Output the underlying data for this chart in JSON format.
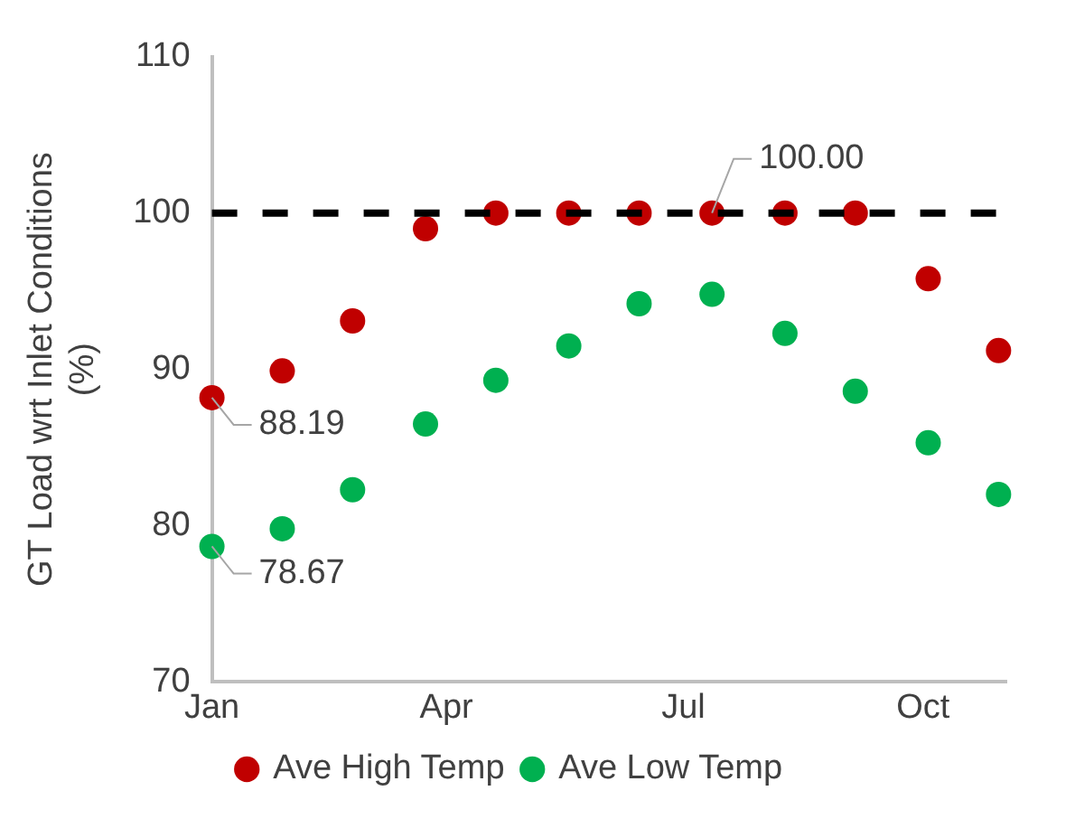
{
  "chart_data": {
    "type": "scatter",
    "ylabel": "GT Load wrt Inlet Conditions\n(%)",
    "x": [
      "--01-01",
      "--01-28",
      "--02-24",
      "--03-24",
      "--04-20",
      "--05-18",
      "--06-14",
      "--07-12",
      "--08-09",
      "--09-05",
      "--10-03",
      "--10-30"
    ],
    "series": [
      {
        "name": "Ave High Temp",
        "color": "#c00000",
        "values": [
          88.19,
          89.9,
          93.1,
          99.0,
          100,
          100,
          100,
          100,
          100,
          100,
          95.8,
          91.2
        ]
      },
      {
        "name": "Ave Low Temp",
        "color": "#00b050",
        "values": [
          78.67,
          79.8,
          82.3,
          86.5,
          89.3,
          91.5,
          94.2,
          94.8,
          92.3,
          88.6,
          85.3,
          82.0
        ]
      }
    ],
    "xlim": [
      "--01-01",
      "--11-02"
    ],
    "xticks": [
      {
        "value": "--01-01",
        "label": "Jan"
      },
      {
        "value": "--04-01",
        "label": "Apr"
      },
      {
        "value": "--07-01",
        "label": "Jul"
      },
      {
        "value": "--10-01",
        "label": "Oct"
      }
    ],
    "ylim": [
      70,
      110
    ],
    "yticks": [
      70,
      80,
      90,
      100,
      110
    ],
    "ref_lines": [
      {
        "axis": "y",
        "value": 100,
        "color": "#000000",
        "line_style": "dashed"
      }
    ],
    "annotations": [
      {
        "text": "88.19",
        "x": "--01-01",
        "y": 88.19
      },
      {
        "text": "78.67",
        "x": "--01-01",
        "y": 78.67
      },
      {
        "text": "100.00",
        "x": "--07-12",
        "y": 100
      }
    ],
    "grid": false,
    "legend": "bottom",
    "marker": "circle"
  }
}
